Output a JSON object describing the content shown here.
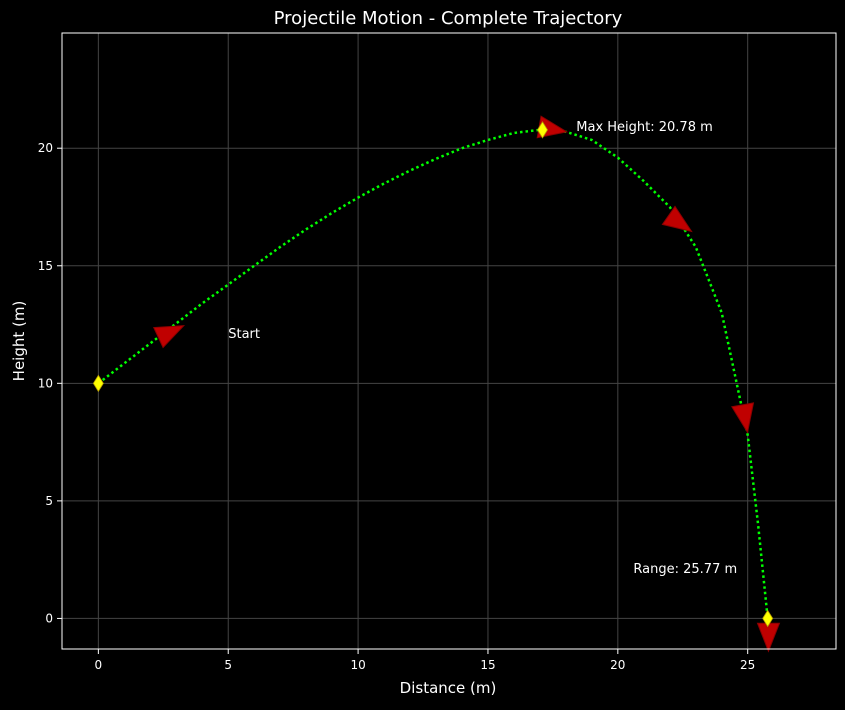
{
  "chart_data": {
    "type": "line",
    "title": "Projectile Motion - Complete Trajectory",
    "xlabel": "Distance (m)",
    "ylabel": "Height (m)",
    "xlim": [
      -1.4,
      28.4
    ],
    "ylim": [
      -1.3,
      24.9
    ],
    "xticks": [
      0,
      5,
      10,
      15,
      20,
      25
    ],
    "yticks": [
      0,
      5,
      10,
      15,
      20
    ],
    "grid": true,
    "series": [
      {
        "points": [
          [
            0.0,
            10.0
          ],
          [
            1.0,
            10.85
          ],
          [
            2.0,
            11.7
          ],
          [
            3.0,
            12.55
          ],
          [
            4.0,
            13.4
          ],
          [
            5.0,
            14.2
          ],
          [
            6.0,
            15.0
          ],
          [
            7.0,
            15.8
          ],
          [
            8.0,
            16.55
          ],
          [
            9.0,
            17.25
          ],
          [
            10.0,
            17.9
          ],
          [
            11.0,
            18.5
          ],
          [
            12.0,
            19.05
          ],
          [
            13.0,
            19.55
          ],
          [
            14.0,
            20.0
          ],
          [
            15.0,
            20.35
          ],
          [
            16.0,
            20.65
          ],
          [
            17.0,
            20.78
          ],
          [
            18.0,
            20.7
          ],
          [
            19.0,
            20.35
          ],
          [
            20.0,
            19.6
          ],
          [
            21.0,
            18.6
          ],
          [
            22.0,
            17.5
          ],
          [
            23.0,
            15.8
          ],
          [
            24.0,
            13.0
          ],
          [
            25.0,
            7.8
          ],
          [
            25.4,
            4.0
          ],
          [
            25.77,
            0.0
          ]
        ]
      }
    ],
    "key_points": [
      {
        "name": "start",
        "x": 0,
        "y": 10
      },
      {
        "name": "max-height",
        "x": 17.1,
        "y": 20.78
      },
      {
        "name": "landing",
        "x": 25.77,
        "y": 0
      }
    ],
    "arrows": [
      {
        "x": 2.8,
        "y": 12.2,
        "angle_deg": -25
      },
      {
        "x": 17.5,
        "y": 20.8,
        "angle_deg": 10
      },
      {
        "x": 22.4,
        "y": 16.8,
        "angle_deg": 35
      },
      {
        "x": 24.9,
        "y": 8.5,
        "angle_deg": 80
      },
      {
        "x": 25.8,
        "y": -0.8,
        "angle_deg": 90
      }
    ],
    "annotations": [
      {
        "name": "start",
        "text": "Start",
        "x": 5.0,
        "y": 12.1
      },
      {
        "name": "max-height",
        "text": "Max Height: 20.78 m",
        "x": 18.4,
        "y": 20.9
      },
      {
        "name": "range",
        "text": "Range: 25.77 m",
        "x": 20.6,
        "y": 2.1
      }
    ],
    "colors": {
      "background": "#000000",
      "trajectory": "#00ff00",
      "arrow": "#c00000",
      "marker": "#ffff00",
      "grid": "#444444",
      "text": "#ffffff"
    }
  }
}
